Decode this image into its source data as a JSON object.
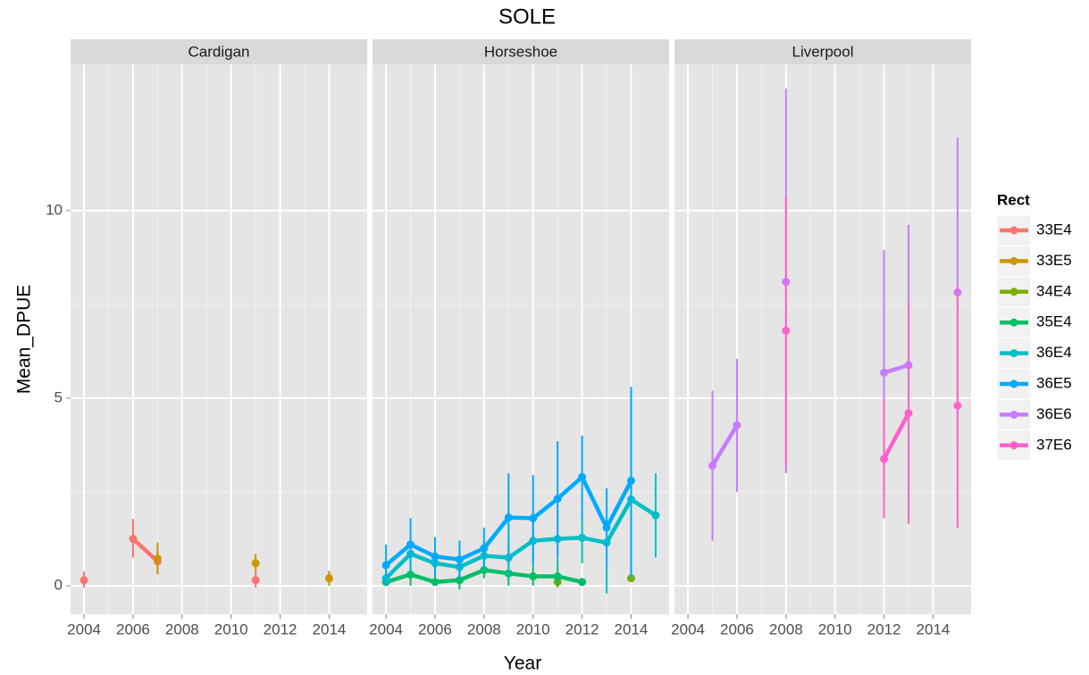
{
  "chart_data": {
    "type": "line",
    "title": "SOLE",
    "x_label": "Year",
    "y_label": "Mean_DPUE",
    "legend_title": "Rect",
    "legend_position": "right",
    "facets": [
      "Cardigan",
      "Horseshoe",
      "Liverpool"
    ],
    "xlim": [
      2003.45,
      2015.55
    ],
    "xticks": [
      2004,
      2006,
      2008,
      2010,
      2012,
      2014
    ],
    "ylim": [
      -0.76,
      13.9
    ],
    "yticks": [
      0,
      5,
      10
    ],
    "grid": true,
    "series": [
      {
        "name": "33E4",
        "color": "#F8766D",
        "panel": "Cardigan",
        "x": [
          2004,
          2006,
          2007,
          2011
        ],
        "values": [
          0.15,
          1.25,
          0.65,
          0.15
        ],
        "lower": [
          -0.05,
          0.75,
          0.35,
          -0.05
        ],
        "upper": [
          0.38,
          1.78,
          0.95,
          0.35
        ]
      },
      {
        "name": "33E5",
        "color": "#CD9600",
        "panel": "Cardigan",
        "x": [
          2007,
          2011,
          2014
        ],
        "values": [
          0.72,
          0.6,
          0.2
        ],
        "lower": [
          0.3,
          0.35,
          0.0
        ],
        "upper": [
          1.15,
          0.85,
          0.4
        ]
      },
      {
        "name": "34E4",
        "color": "#7CAE00",
        "panel": "Horseshoe",
        "x": [
          2011,
          2014
        ],
        "values": [
          0.1,
          0.2
        ],
        "lower": [
          -0.05,
          0.1
        ],
        "upper": [
          0.25,
          0.3
        ]
      },
      {
        "name": "35E4",
        "color": "#00BE67",
        "panel": "Horseshoe",
        "x": [
          2004,
          2005,
          2006,
          2007,
          2008,
          2009,
          2010,
          2011,
          2012
        ],
        "values": [
          0.1,
          0.3,
          0.1,
          0.15,
          0.42,
          0.33,
          0.25,
          0.25,
          0.1
        ],
        "lower": [
          0.0,
          0.0,
          0.0,
          -0.1,
          0.2,
          0.0,
          0.0,
          0.0,
          0.0
        ],
        "upper": [
          0.3,
          0.6,
          0.3,
          0.4,
          0.7,
          0.7,
          0.5,
          0.5,
          0.2
        ]
      },
      {
        "name": "36E4",
        "color": "#00BFC4",
        "panel": "Horseshoe",
        "x": [
          2004,
          2005,
          2006,
          2007,
          2008,
          2009,
          2010,
          2011,
          2012,
          2013,
          2014,
          2015
        ],
        "values": [
          0.2,
          0.85,
          0.6,
          0.5,
          0.8,
          0.75,
          1.2,
          1.25,
          1.28,
          1.15,
          2.3,
          1.88
        ],
        "lower": [
          0.0,
          0.4,
          0.3,
          0.2,
          0.4,
          0.2,
          0.5,
          0.5,
          0.6,
          -0.2,
          0.2,
          0.75
        ],
        "upper": [
          0.4,
          1.3,
          0.9,
          0.8,
          1.2,
          1.3,
          1.9,
          2.0,
          1.9,
          2.6,
          4.4,
          3.0
        ]
      },
      {
        "name": "36E5",
        "color": "#00A9FF",
        "panel": "Horseshoe",
        "x": [
          2004,
          2005,
          2006,
          2007,
          2008,
          2009,
          2010,
          2011,
          2012,
          2013,
          2014
        ],
        "values": [
          0.55,
          1.1,
          0.78,
          0.7,
          1.0,
          1.82,
          1.8,
          2.32,
          2.9,
          1.55,
          2.8
        ],
        "lower": [
          0.0,
          0.4,
          0.25,
          0.2,
          0.5,
          0.6,
          0.6,
          0.8,
          1.8,
          0.5,
          0.3
        ],
        "upper": [
          1.1,
          1.8,
          1.3,
          1.2,
          1.55,
          3.0,
          2.95,
          3.85,
          4.0,
          2.6,
          5.3
        ]
      },
      {
        "name": "36E6",
        "color": "#C77CFF",
        "panel": "Liverpool",
        "x": [
          2005,
          2006,
          2008,
          2012,
          2013,
          2015
        ],
        "values": [
          3.2,
          4.28,
          8.1,
          5.68,
          5.88,
          7.82
        ],
        "lower": [
          1.2,
          2.5,
          3.0,
          2.4,
          2.15,
          3.7
        ],
        "upper": [
          5.2,
          6.05,
          13.25,
          8.95,
          9.62,
          11.95
        ]
      },
      {
        "name": "37E6",
        "color": "#FF61CC",
        "panel": "Liverpool",
        "x": [
          2008,
          2012,
          2013,
          2015
        ],
        "values": [
          6.8,
          3.38,
          4.6,
          4.8
        ],
        "lower": [
          3.2,
          1.8,
          1.65,
          1.55
        ],
        "upper": [
          10.4,
          5.0,
          7.55,
          8.05
        ]
      }
    ]
  }
}
